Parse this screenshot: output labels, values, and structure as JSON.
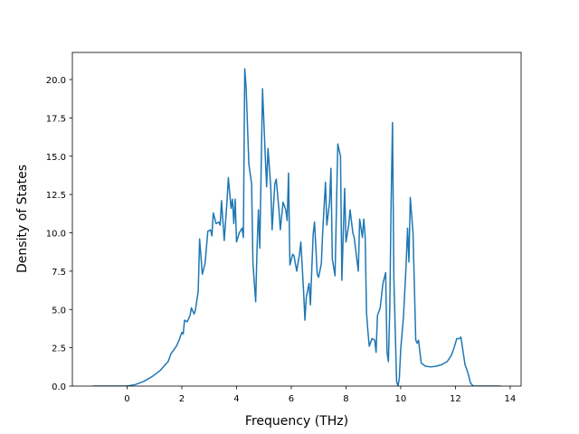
{
  "chart_data": {
    "type": "line",
    "xlabel": "Frequency (THz)",
    "ylabel": "Density of States",
    "xlim": [
      -2.0,
      14.4
    ],
    "ylim": [
      0,
      21.77
    ],
    "xticks": [
      0,
      2,
      4,
      6,
      8,
      10,
      12,
      14
    ],
    "yticks": [
      {
        "value": 0,
        "label": "0.0"
      },
      {
        "value": 2.5,
        "label": "2.5"
      },
      {
        "value": 5,
        "label": "5.0"
      },
      {
        "value": 7.5,
        "label": "7.5"
      },
      {
        "value": 10,
        "label": "10.0"
      },
      {
        "value": 12.5,
        "label": "12.5"
      },
      {
        "value": 15,
        "label": "15.0"
      },
      {
        "value": 17.5,
        "label": "17.5"
      },
      {
        "value": 20,
        "label": "20.0"
      }
    ],
    "color": "#1f77b4",
    "x": [
      -1.26,
      0,
      0.3,
      0.6,
      0.9,
      1.2,
      1.4,
      1.5,
      1.6,
      1.8,
      1.9,
      2.0,
      2.05,
      2.1,
      2.2,
      2.3,
      2.35,
      2.45,
      2.5,
      2.6,
      2.65,
      2.75,
      2.85,
      2.95,
      3.05,
      3.1,
      3.15,
      3.25,
      3.35,
      3.4,
      3.45,
      3.55,
      3.65,
      3.7,
      3.8,
      3.85,
      3.9,
      3.95,
      4.0,
      4.1,
      4.2,
      4.25,
      4.3,
      4.35,
      4.45,
      4.55,
      4.6,
      4.7,
      4.75,
      4.8,
      4.85,
      4.95,
      5.05,
      5.1,
      5.15,
      5.25,
      5.3,
      5.4,
      5.45,
      5.55,
      5.6,
      5.7,
      5.8,
      5.85,
      5.9,
      5.95,
      6.05,
      6.1,
      6.2,
      6.3,
      6.35,
      6.45,
      6.5,
      6.55,
      6.65,
      6.7,
      6.8,
      6.85,
      6.95,
      7.0,
      7.1,
      7.15,
      7.25,
      7.3,
      7.4,
      7.45,
      7.5,
      7.6,
      7.7,
      7.8,
      7.85,
      7.95,
      8.0,
      8.1,
      8.15,
      8.25,
      8.3,
      8.45,
      8.5,
      8.6,
      8.65,
      8.7,
      8.75,
      8.8,
      8.85,
      8.95,
      9.05,
      9.1,
      9.15,
      9.25,
      9.35,
      9.45,
      9.5,
      9.55,
      9.6,
      9.65,
      9.7,
      9.75,
      9.85,
      9.9,
      9.95,
      10.0,
      10.1,
      10.2,
      10.25,
      10.3,
      10.35,
      10.45,
      10.55,
      10.6,
      10.65,
      10.75,
      10.9,
      11.1,
      11.3,
      11.5,
      11.7,
      11.85,
      11.95,
      12.05,
      12.15,
      12.2,
      12.25,
      12.35,
      12.45,
      12.55,
      12.65,
      13.65
    ],
    "values": [
      0,
      0,
      0.1,
      0.3,
      0.6,
      1.0,
      1.4,
      1.6,
      2.1,
      2.6,
      3.0,
      3.5,
      3.4,
      4.3,
      4.2,
      4.6,
      5.1,
      4.7,
      5.0,
      6.2,
      9.6,
      7.3,
      8.0,
      10.1,
      10.2,
      9.8,
      11.3,
      10.6,
      10.7,
      10.5,
      12.1,
      9.5,
      12.0,
      13.6,
      11.6,
      12.2,
      10.6,
      12.2,
      9.4,
      10.0,
      10.3,
      9.7,
      20.7,
      19.5,
      14.5,
      13.2,
      8.0,
      5.5,
      9.0,
      11.5,
      9.0,
      19.4,
      15.0,
      13.0,
      15.5,
      13.0,
      10.2,
      13.2,
      13.5,
      11.5,
      10.2,
      12.0,
      11.5,
      10.8,
      13.9,
      7.9,
      8.6,
      8.5,
      7.5,
      8.6,
      9.4,
      6.2,
      4.3,
      5.8,
      6.7,
      5.3,
      9.9,
      10.7,
      7.3,
      7.1,
      8.0,
      10.1,
      13.3,
      10.5,
      12.0,
      14.2,
      8.3,
      7.2,
      15.8,
      15.0,
      6.9,
      12.9,
      9.4,
      10.5,
      11.5,
      10.0,
      9.7,
      7.5,
      10.9,
      9.7,
      10.9,
      9.8,
      4.8,
      3.6,
      2.6,
      3.1,
      3.0,
      2.2,
      4.6,
      5.1,
      6.7,
      7.4,
      2.2,
      1.6,
      5.0,
      12.0,
      17.2,
      7.0,
      0.3,
      0,
      0.5,
      2.4,
      4.5,
      8.0,
      10.3,
      8.1,
      12.3,
      10.0,
      3.0,
      2.8,
      3.0,
      1.5,
      1.3,
      1.25,
      1.3,
      1.4,
      1.6,
      2.0,
      2.5,
      3.1,
      3.1,
      3.2,
      2.6,
      1.4,
      0.9,
      0.2,
      0,
      0
    ]
  }
}
